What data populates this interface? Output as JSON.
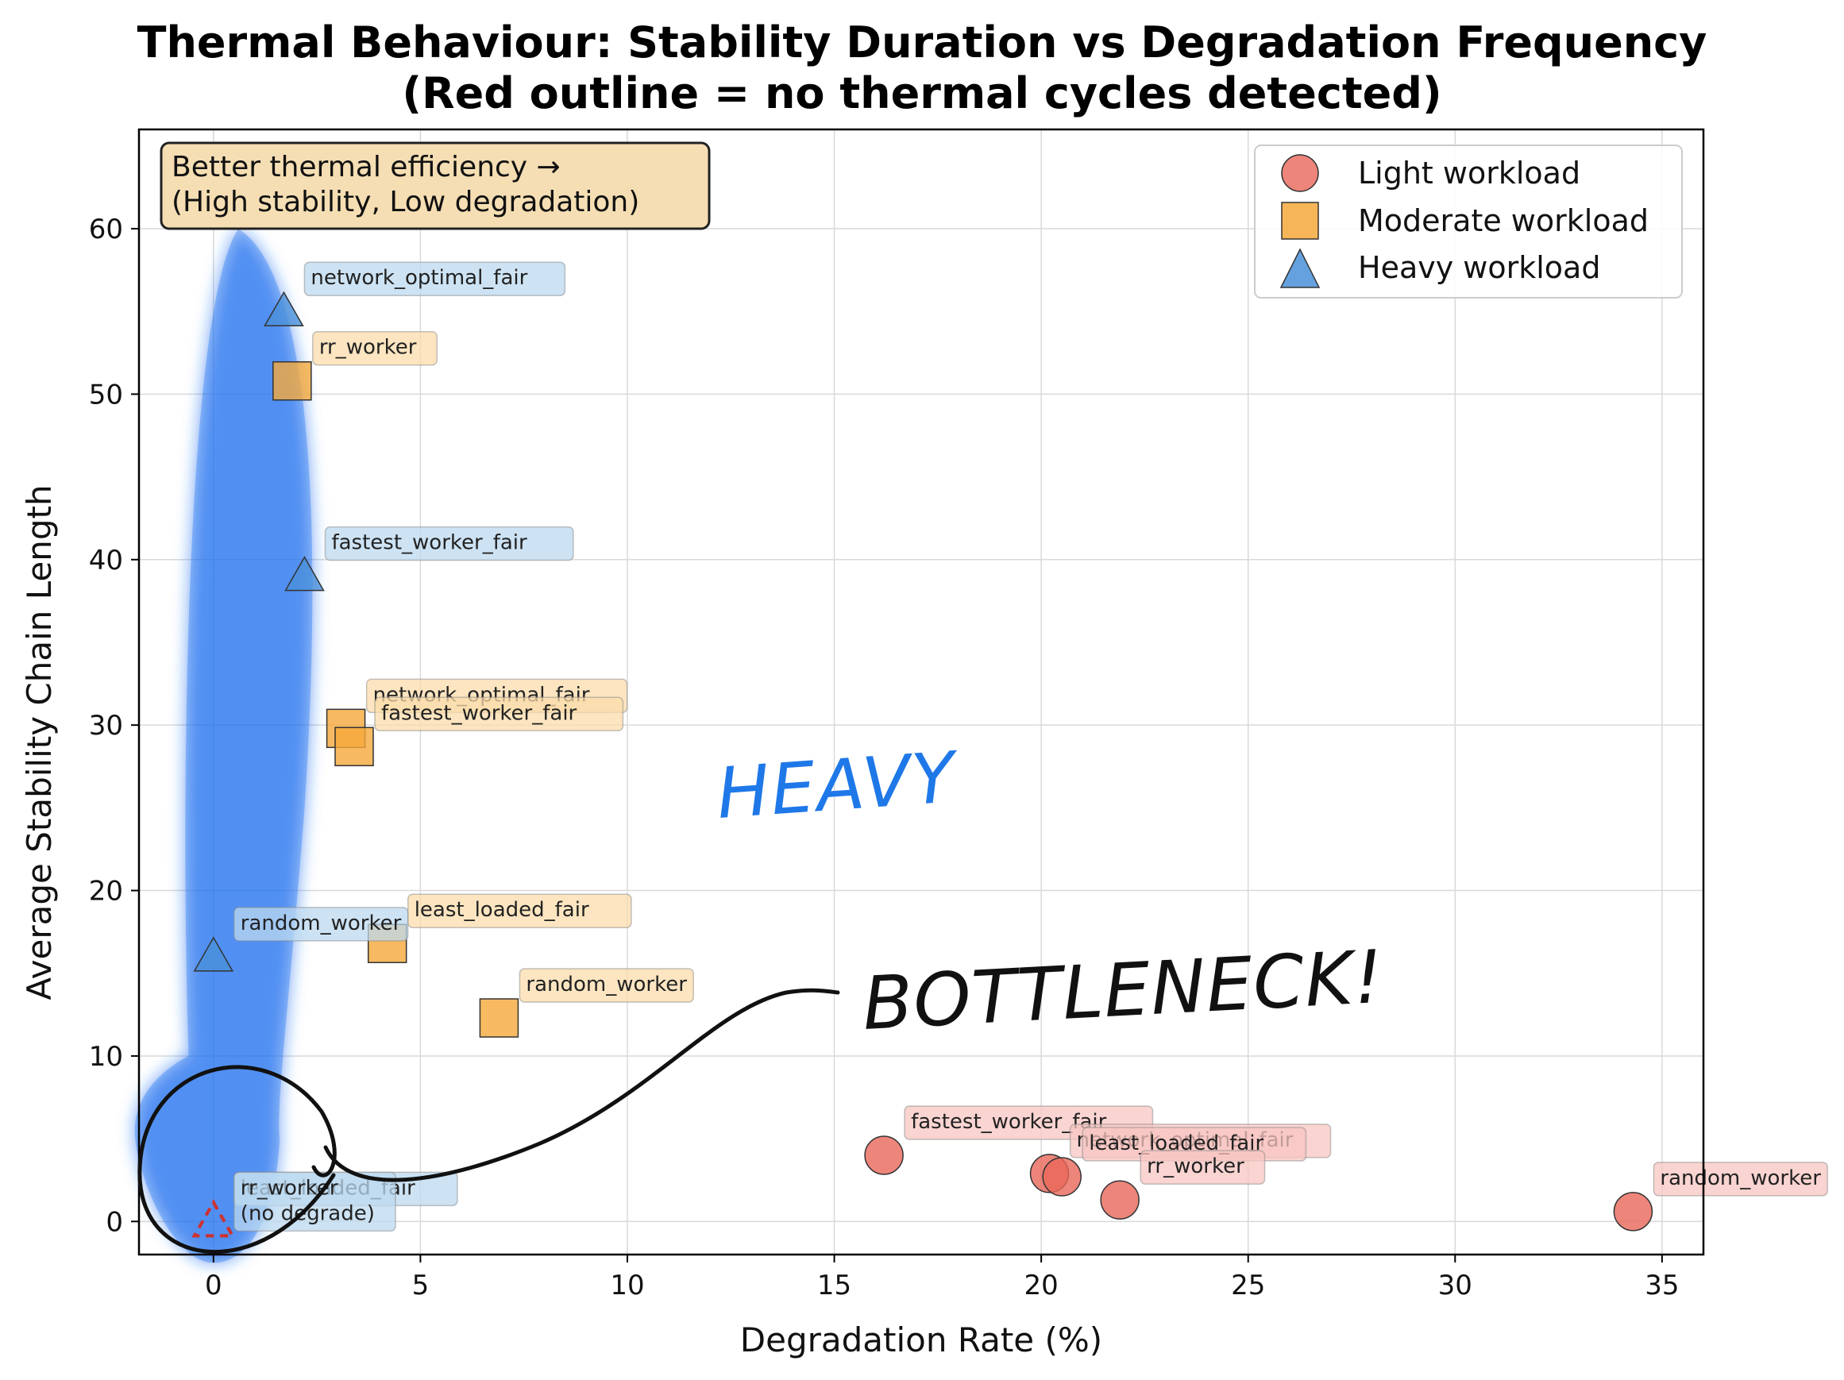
{
  "chart_data": {
    "type": "scatter",
    "title": "Thermal Behaviour: Stability Duration vs Degradation Frequency",
    "subtitle": "(Red outline = no thermal cycles detected)",
    "xlabel": "Degradation Rate (%)",
    "ylabel": "Average Stability Chain Length",
    "xlim": [
      -1.8,
      36
    ],
    "ylim": [
      -2,
      66
    ],
    "xticks": [
      0,
      5,
      10,
      15,
      20,
      25,
      30,
      35
    ],
    "yticks": [
      0,
      10,
      20,
      30,
      40,
      50,
      60
    ],
    "grid": true,
    "legend_position": "top-right",
    "series": [
      {
        "name": "Light workload",
        "marker": "circle",
        "color": "#e8665a",
        "label_bg": "#f7c6c2",
        "points": [
          {
            "x": 16.2,
            "y": 4.0,
            "label": "fastest_worker_fair"
          },
          {
            "x": 20.2,
            "y": 2.9,
            "label": "network_optimal_fair"
          },
          {
            "x": 20.5,
            "y": 2.7,
            "label": "least_loaded_fair"
          },
          {
            "x": 21.9,
            "y": 1.3,
            "label": "rr_worker"
          },
          {
            "x": 34.3,
            "y": 0.6,
            "label": "random_worker"
          }
        ]
      },
      {
        "name": "Moderate workload",
        "marker": "square",
        "color": "#f5a93b",
        "label_bg": "#fbdcab",
        "points": [
          {
            "x": 1.9,
            "y": 50.8,
            "label": "rr_worker"
          },
          {
            "x": 3.2,
            "y": 29.8,
            "label": "network_optimal_fair"
          },
          {
            "x": 3.4,
            "y": 28.7,
            "label": "fastest_worker_fair"
          },
          {
            "x": 4.2,
            "y": 16.8,
            "label": "least_loaded_fair"
          },
          {
            "x": 6.9,
            "y": 12.3,
            "label": "random_worker"
          }
        ]
      },
      {
        "name": "Heavy workload",
        "marker": "triangle",
        "color": "#4a90d9",
        "label_bg": "#bcd9f0",
        "points": [
          {
            "x": 1.7,
            "y": 55.0,
            "label": "network_optimal_fair"
          },
          {
            "x": 2.2,
            "y": 39.0,
            "label": "fastest_worker_fair"
          },
          {
            "x": 0.0,
            "y": 16.0,
            "label": "random_worker"
          },
          {
            "x": 0.0,
            "y": 0.0,
            "label": "least_loaded_fair",
            "no_cycles": true
          },
          {
            "x": 0.0,
            "y": 0.0,
            "label": "rr_worker\n(no degrade)",
            "no_cycles": true
          }
        ]
      }
    ],
    "annotations": {
      "info_box": [
        "Better thermal efficiency →",
        "(High stability, Low degradation)"
      ],
      "handwritten": [
        "HEAVY",
        "BOTTLENECK!"
      ]
    }
  },
  "colors": {
    "highlight_blue": "#1f6fef",
    "ink": "#111111",
    "info_box_bg": "#f5deb3"
  }
}
